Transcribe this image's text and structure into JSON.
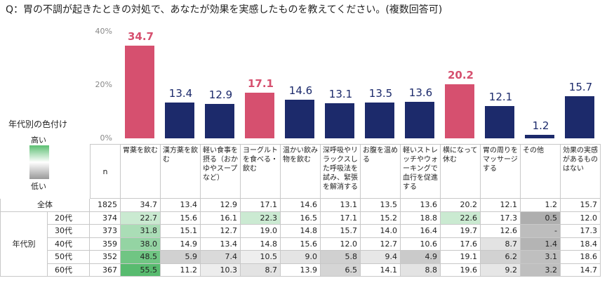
{
  "title": "Q：胃の不調が起きたときの対処で、あなたが効果を実感したものを教えてください。(複数回答可)",
  "chart_data": {
    "type": "bar",
    "categories": [
      "胃薬を飲む",
      "漢方薬を飲む",
      "軽い食事を摂る（おかゆやスープなど）",
      "ヨーグルトを食べる・飲む",
      "温かい飲み物を飲む",
      "深呼吸やリラックスした呼吸法を試み、緊張を解消する",
      "お腹を温める",
      "軽いストレッチやウォーキングで血行を促進する",
      "横になって休む",
      "胃の周りをマッサージする",
      "その他",
      "効果の実感があるものはない"
    ],
    "values": [
      34.7,
      13.4,
      12.9,
      17.1,
      14.6,
      13.1,
      13.5,
      13.6,
      20.2,
      12.1,
      1.2,
      15.7
    ],
    "colors": [
      "#d6506f",
      "#1c2a6b",
      "#1c2a6b",
      "#d6506f",
      "#1c2a6b",
      "#1c2a6b",
      "#1c2a6b",
      "#1c2a6b",
      "#d6506f",
      "#1c2a6b",
      "#1c2a6b",
      "#1c2a6b"
    ],
    "ylim": [
      0,
      40
    ],
    "yticks": [
      {
        "value": 0,
        "label": "0%"
      },
      {
        "value": 20,
        "label": "20%"
      },
      {
        "value": 40,
        "label": "40%"
      }
    ],
    "grid": false
  },
  "legend": {
    "title": "年代別の色付け",
    "high": "高い",
    "low": "低い"
  },
  "table": {
    "n_header": "n",
    "group_label": "年代別",
    "rows": [
      {
        "label": "全体",
        "n": "1825",
        "values": [
          "34.7",
          "13.4",
          "12.9",
          "17.1",
          "14.6",
          "13.1",
          "13.5",
          "13.6",
          "20.2",
          "12.1",
          "1.2",
          "15.7"
        ]
      },
      {
        "label": "20代",
        "n": "374",
        "values": [
          "22.7",
          "15.6",
          "16.1",
          "22.3",
          "16.5",
          "17.1",
          "15.2",
          "18.8",
          "22.6",
          "17.3",
          "0.5",
          "12.0"
        ]
      },
      {
        "label": "30代",
        "n": "373",
        "values": [
          "31.8",
          "15.1",
          "12.7",
          "19.0",
          "14.8",
          "15.7",
          "14.0",
          "16.4",
          "19.7",
          "12.6",
          "-",
          "17.3"
        ]
      },
      {
        "label": "40代",
        "n": "359",
        "values": [
          "38.0",
          "14.9",
          "13.4",
          "14.8",
          "15.6",
          "12.0",
          "12.7",
          "10.6",
          "17.6",
          "8.7",
          "1.4",
          "18.4"
        ]
      },
      {
        "label": "50代",
        "n": "352",
        "values": [
          "48.5",
          "5.9",
          "7.4",
          "10.5",
          "9.0",
          "5.8",
          "9.4",
          "4.9",
          "19.1",
          "6.2",
          "3.1",
          "18.6"
        ]
      },
      {
        "label": "60代",
        "n": "367",
        "values": [
          "55.5",
          "11.2",
          "10.3",
          "8.7",
          "13.9",
          "6.5",
          "14.1",
          "8.8",
          "19.6",
          "9.2",
          "3.2",
          "14.7"
        ]
      }
    ]
  }
}
